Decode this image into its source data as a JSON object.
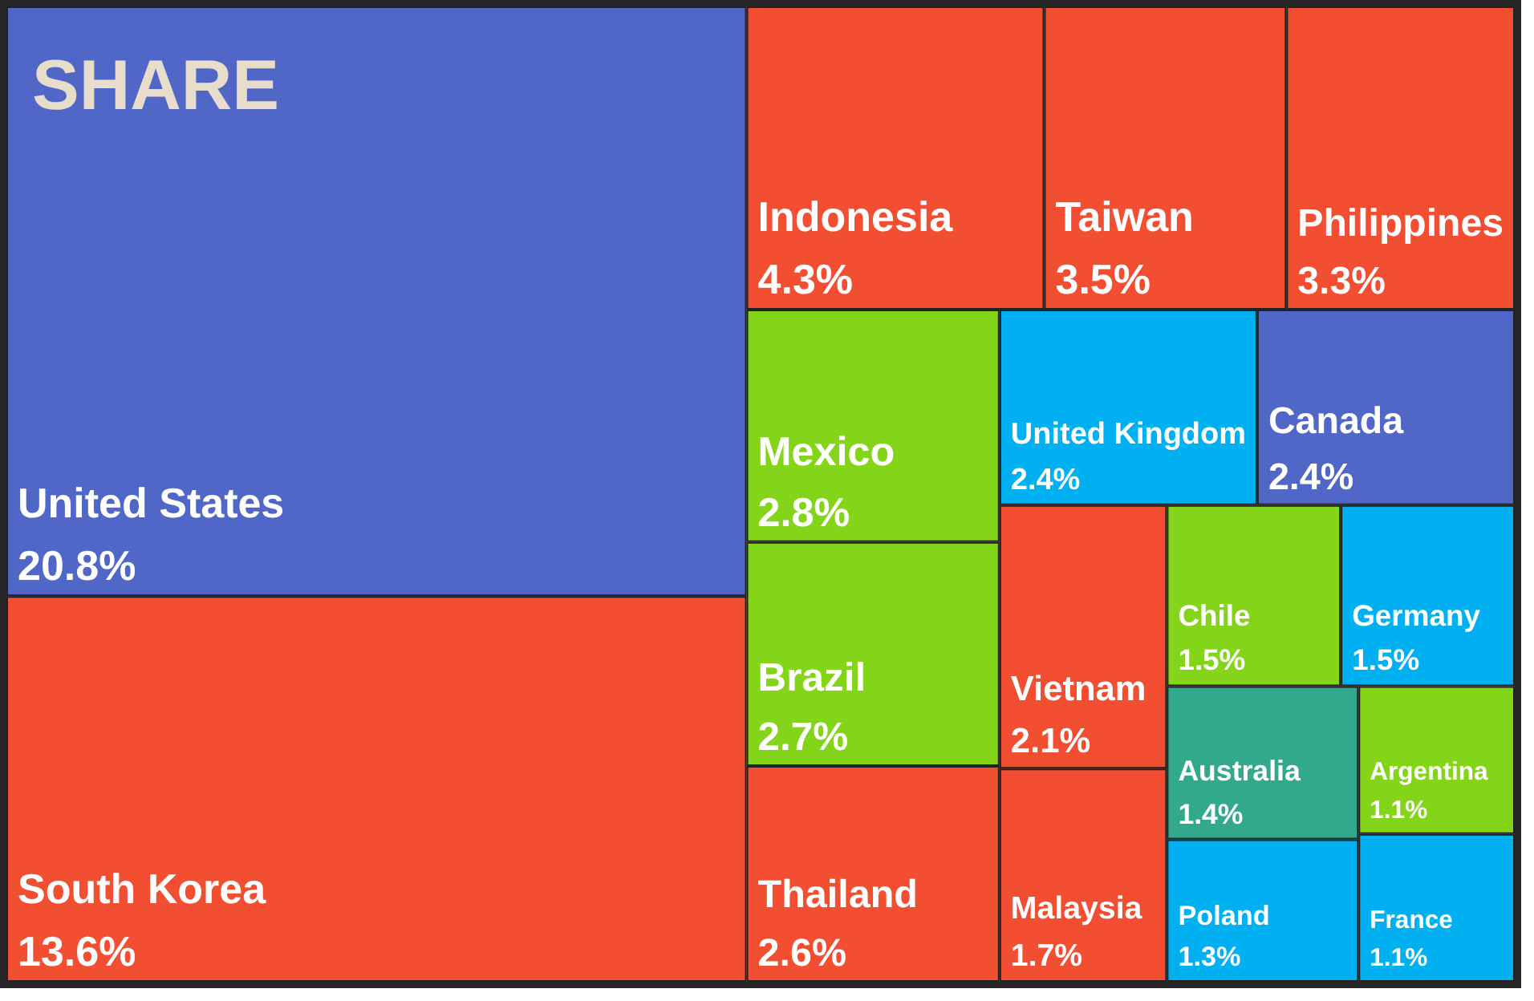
{
  "chart_data": {
    "type": "other",
    "title": "SHARE",
    "categories": [
      "United States",
      "South Korea",
      "Indonesia",
      "Taiwan",
      "Philippines",
      "Mexico",
      "Brazil",
      "Thailand",
      "United Kingdom",
      "Canada",
      "Vietnam",
      "Malaysia",
      "Chile",
      "Germany",
      "Australia",
      "Poland",
      "Argentina",
      "France"
    ],
    "values": [
      20.8,
      13.6,
      4.3,
      3.5,
      3.3,
      2.8,
      2.7,
      2.6,
      2.4,
      2.4,
      2.1,
      1.7,
      1.5,
      1.5,
      1.4,
      1.3,
      1.1,
      1.1
    ],
    "value_labels": [
      "20.8%",
      "13.6%",
      "4.3%",
      "3.5%",
      "3.3%",
      "2.8%",
      "2.7%",
      "2.6%",
      "2.4%",
      "2.4%",
      "2.1%",
      "1.7%",
      "1.5%",
      "1.5%",
      "1.4%",
      "1.3%",
      "1.1%",
      "1.1%"
    ],
    "colors": [
      "#5067c8",
      "#f24e32",
      "#f24e32",
      "#f24e32",
      "#f24e32",
      "#84d41a",
      "#84d41a",
      "#f24e32",
      "#00b0f0",
      "#5067c8",
      "#f24e32",
      "#f24e32",
      "#84d41a",
      "#00b0f0",
      "#33a98c",
      "#00b0f0",
      "#84d41a",
      "#00b0f0"
    ]
  }
}
